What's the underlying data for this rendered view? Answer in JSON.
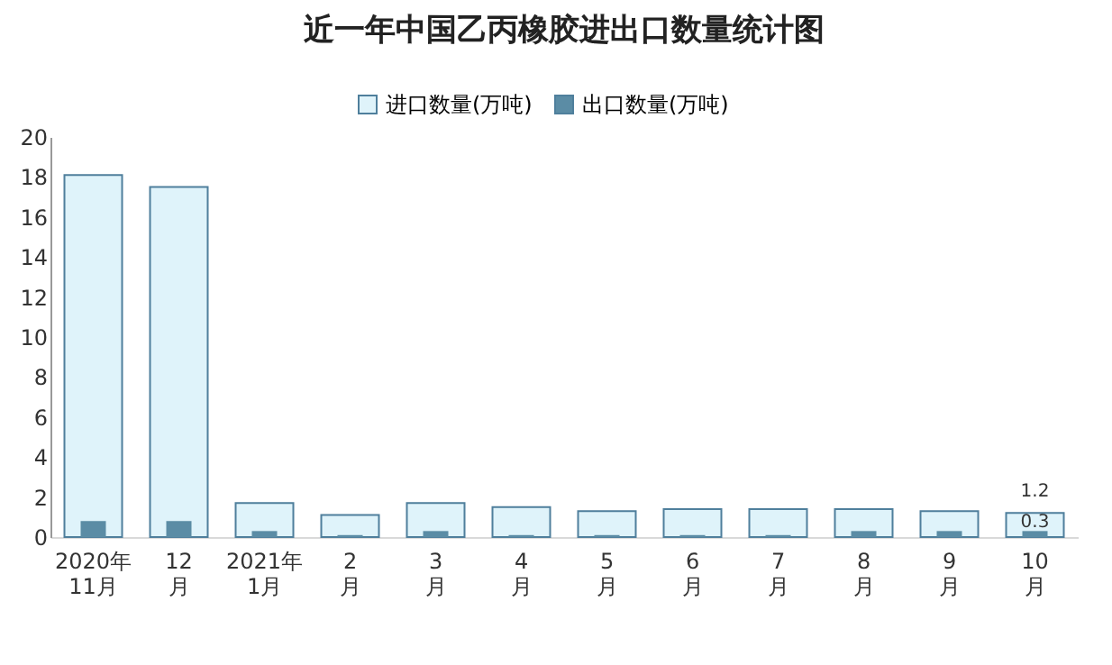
{
  "chart_data": {
    "type": "bar",
    "title": "近一年中国乙丙橡胶进出口数量统计图",
    "categories": [
      "2020年\n11月",
      "12\n月",
      "2021年\n1月",
      "2\n月",
      "3\n月",
      "4\n月",
      "5\n月",
      "6\n月",
      "7\n月",
      "8\n月",
      "9\n月",
      "10\n月"
    ],
    "series": [
      {
        "name": "进口数量(万吨)",
        "color": "#dff3fa",
        "values": [
          18.1,
          17.5,
          1.7,
          1.1,
          1.7,
          1.5,
          1.3,
          1.4,
          1.4,
          1.4,
          1.3,
          1.2
        ],
        "value_labels": [
          null,
          null,
          null,
          null,
          null,
          null,
          null,
          null,
          null,
          null,
          null,
          "1.2"
        ]
      },
      {
        "name": "出口数量(万吨)",
        "color": "#5b8ca5",
        "values": [
          0.8,
          0.8,
          0.3,
          0.1,
          0.3,
          0.1,
          0.1,
          0.1,
          0.1,
          0.3,
          0.3,
          0.3
        ],
        "value_labels": [
          null,
          null,
          null,
          null,
          null,
          null,
          null,
          null,
          null,
          null,
          null,
          "0.3"
        ]
      }
    ],
    "ylim": [
      0,
      20
    ],
    "yticks": [
      0,
      2,
      4,
      6,
      8,
      10,
      12,
      14,
      16,
      18,
      20
    ],
    "grid": false,
    "legend": "top"
  }
}
